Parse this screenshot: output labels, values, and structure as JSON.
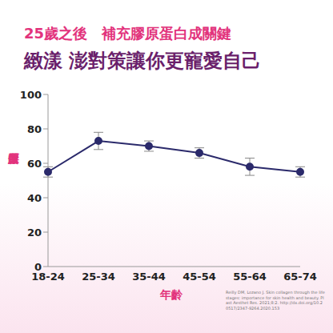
{
  "chart_data": {
    "type": "line",
    "title": "25歲之後　補充膠原蛋白成關鍵",
    "subtitle": "緻漾 澎對策讓你更寵愛自己",
    "y_label": "膠原蛋白",
    "x_label": "年齡",
    "annotations": [
      "Reilly DM, Lozano J. Skin collagen through the lifestages: importance for skin health and beauty. Plast Aesthet Res. 2021;8:2. http://dx.doi.org/10.20517/2347-9264.2020.153"
    ],
    "categories": [
      "18-24",
      "25-34",
      "35-44",
      "45-54",
      "55-64",
      "65-74"
    ],
    "values": [
      55,
      73,
      70,
      66,
      58,
      55
    ],
    "errors": [
      3,
      5,
      3,
      3,
      5,
      3
    ],
    "color": "#2b2a6b",
    "marker": "circle",
    "ylim": [
      0,
      100
    ],
    "yticks": [
      0,
      20,
      40,
      60,
      80,
      100
    ],
    "grid": false
  }
}
